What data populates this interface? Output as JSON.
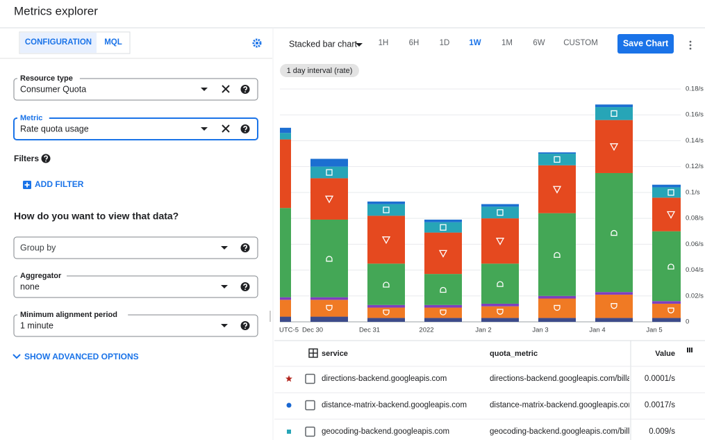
{
  "header": {
    "title": "Metrics explorer"
  },
  "tabs": [
    "CONFIGURATION",
    "MQL"
  ],
  "fields": [
    {
      "label": "Resource type",
      "value": "Consumer Quota"
    },
    {
      "label": "Metric",
      "value": "Rate quota usage"
    }
  ],
  "filters": {
    "label": "Filters",
    "add_button": "ADD FILTER"
  },
  "view_heading": "How do you want to view that data?",
  "view_fields": [
    {
      "placeholder": "Group by"
    },
    {
      "label": "Aggregator",
      "value": "none"
    },
    {
      "label": "Minimum alignment period",
      "value": "1 minute"
    }
  ],
  "advanced": "SHOW ADVANCED OPTIONS",
  "toolbar": {
    "chart_type": "Stacked bar chart",
    "ranges": [
      "1H",
      "6H",
      "1D",
      "1W",
      "1M",
      "6W",
      "CUSTOM"
    ],
    "selected_range": "1W",
    "save": "Save Chart"
  },
  "interval": "1 day interval (rate)",
  "chart_data": {
    "type": "stacked_bar",
    "timezone": "UTC-5",
    "categories": [
      null,
      "Dec 30",
      "Dec 31",
      "2022",
      "Jan 2",
      "Jan 3",
      "Jan 4",
      "Jan 5"
    ],
    "series": [
      {
        "color": "#3d4b8a",
        "values": [
          0.004,
          0.004,
          0.003,
          0.003,
          0.003,
          0.003,
          0.003,
          0.003
        ]
      },
      {
        "color": "#f07a24",
        "marker": "shield",
        "values": [
          0.013,
          0.013,
          0.008,
          0.008,
          0.009,
          0.015,
          0.018,
          0.011
        ]
      },
      {
        "color": "#7e3fbf",
        "values": [
          0.002,
          0.002,
          0.002,
          0.002,
          0.002,
          0.002,
          0.002,
          0.002
        ]
      },
      {
        "color": "#44a756",
        "marker": "dome",
        "values": [
          0.069,
          0.06,
          0.032,
          0.024,
          0.031,
          0.064,
          0.092,
          0.054
        ]
      },
      {
        "color": "#e5491f",
        "marker": "triangle",
        "values": [
          0.053,
          0.032,
          0.037,
          0.032,
          0.035,
          0.037,
          0.041,
          0.026
        ]
      },
      {
        "color": "#27a5b7",
        "marker": "square",
        "values": [
          0.005,
          0.009,
          0.009,
          0.008,
          0.009,
          0.009,
          0.01,
          0.008
        ]
      },
      {
        "color": "#1c6fd1",
        "values": [
          0.004,
          0.006,
          0.002,
          0.002,
          0.002,
          0.001,
          0.002,
          0.002
        ]
      }
    ],
    "ylim": [
      0,
      0.18
    ],
    "yticks": [
      0,
      {
        "value": 0.02,
        "label": "0.02/s"
      },
      {
        "value": 0.04,
        "label": "0.04/s"
      },
      {
        "value": 0.06,
        "label": "0.06/s"
      },
      {
        "value": 0.08,
        "label": "0.08/s"
      },
      {
        "value": 0.1,
        "label": "0.1/s"
      },
      {
        "value": 0.12,
        "label": "0.12/s"
      },
      {
        "value": 0.14,
        "label": "0.14/s"
      },
      {
        "value": 0.16,
        "label": "0.16/s"
      },
      {
        "value": 0.18,
        "label": "0.18/s"
      }
    ],
    "grid": true
  },
  "table": {
    "columns": [
      "service",
      "quota_metric",
      "Value"
    ],
    "rows": [
      {
        "marker": "star",
        "color": "#b3261e",
        "service": "directions-backend.googleapis.com",
        "quota_metric": "directions-backend.googleapis.com/billabl",
        "value": "0.0001/s"
      },
      {
        "marker": "dot",
        "color": "#1967d2",
        "service": "distance-matrix-backend.googleapis.com",
        "quota_metric": "distance-matrix-backend.googleapis.com/l",
        "value": "0.0017/s"
      },
      {
        "marker": "square",
        "color": "#27a5b7",
        "service": "geocoding-backend.googleapis.com",
        "quota_metric": "geocoding-backend.googleapis.com/billab",
        "value": "0.009/s"
      }
    ]
  }
}
